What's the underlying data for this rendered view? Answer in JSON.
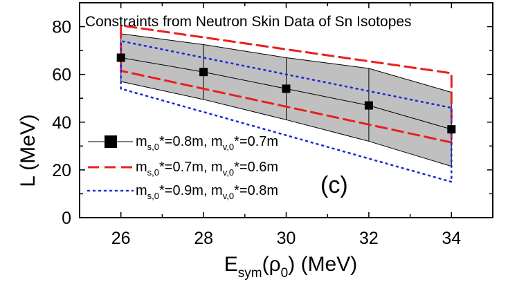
{
  "chart_data": {
    "type": "line",
    "title": "Constraints from Neutron Skin Data of Sn Isotopes",
    "panel_label": "(c)",
    "xlabel": {
      "main": "E",
      "sub": "sym",
      "paren_open": "(",
      "rho": "ρ",
      "rho_sub": "0",
      "rest": ") (MeV)"
    },
    "ylabel": "L (MeV)",
    "xlim": [
      25,
      35
    ],
    "ylim": [
      0,
      90
    ],
    "xticks": [
      26,
      28,
      30,
      32,
      34
    ],
    "yticks": [
      0,
      20,
      40,
      60,
      80
    ],
    "x": [
      26,
      28,
      30,
      32,
      34
    ],
    "band": {
      "upper": [
        77,
        72.5,
        67,
        62.5,
        52.5
      ],
      "lower": [
        57,
        49.5,
        41,
        32,
        21.5
      ],
      "fill": "#c0c0c0"
    },
    "series": [
      {
        "name": "m_s0*=0.8m, m_v0*=0.7m",
        "style": "markers",
        "color": "#000000",
        "values": [
          67,
          61,
          54,
          47,
          37
        ]
      },
      {
        "name": "m_s0*=0.7m, m_v0*=0.6m",
        "style": "dashed",
        "color": "#e8201f",
        "upper": [
          80.5,
          60.5
        ],
        "lower": [
          61.5,
          31.5
        ]
      },
      {
        "name": "m_s0*=0.9m, m_v0*=0.8m",
        "style": "dotted",
        "color": "#1f2bd6",
        "upper": [
          74,
          46
        ],
        "lower": [
          54,
          15
        ]
      }
    ],
    "legend": [
      {
        "sym_a": "m",
        "sub_a": "s,0",
        "mid": "*=0.8m, m",
        "sub_b": "v,0",
        "end": "*=0.7m"
      },
      {
        "sym_a": "m",
        "sub_a": "s,0",
        "mid": "*=0.7m, m",
        "sub_b": "v,0",
        "end": "*=0.6m"
      },
      {
        "sym_a": "m",
        "sub_a": "s,0",
        "mid": "*=0.9m, m",
        "sub_b": "v,0",
        "end": "*=0.8m"
      }
    ],
    "legend_position": "bottom-left",
    "grid": false
  }
}
